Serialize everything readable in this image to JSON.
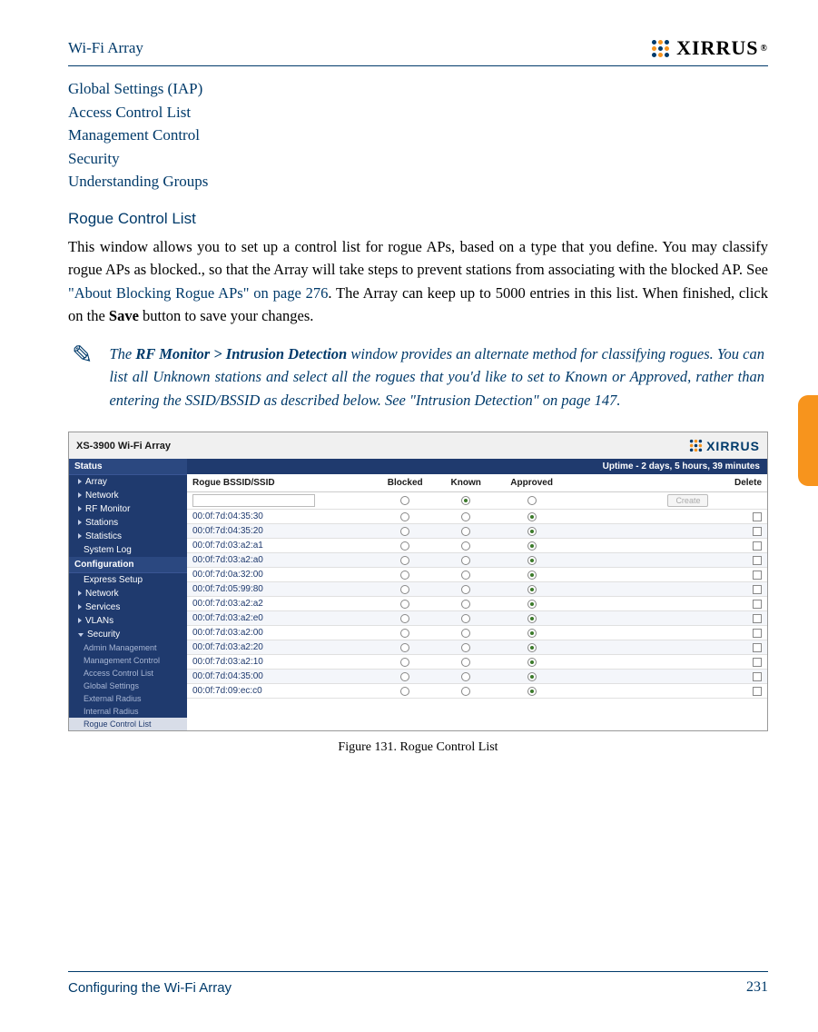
{
  "header": {
    "title": "Wi-Fi Array",
    "logo_text": "XIRRUS"
  },
  "nav_links": [
    "Global Settings (IAP)",
    "Access Control List",
    "Management Control",
    "Security",
    "Understanding Groups"
  ],
  "section": {
    "heading": "Rogue Control List",
    "para_1a": "This window allows you to set up a control list for rogue APs, based on a type that you define. You may classify rogue APs as blocked., so that the Array will take steps to prevent stations from associating with the blocked AP. See ",
    "para_1_link": "\"About Blocking Rogue APs\" on page 276",
    "para_1b": ". The Array can keep up to 5000 entries in this list. When finished, click on the ",
    "para_1_bold": "Save",
    "para_1c": " button to save your changes."
  },
  "note": {
    "prefix": "The ",
    "bold": "RF Monitor > Intrusion Detection",
    "rest": " window provides an alternate method for classifying rogues. You can list all Unknown stations and select all the rogues that you'd like to set to Known or Approved, rather than entering the SSID/BSSID as described below. See \"Intrusion Detection\" on page 147."
  },
  "screenshot": {
    "product": "XS-3900 Wi-Fi Array",
    "logo": "XIRRUS",
    "uptime": "Uptime - 2 days, 5 hours, 39 minutes",
    "sidebar": {
      "status_header": "Status",
      "status_items": [
        "Array",
        "Network",
        "RF Monitor",
        "Stations",
        "Statistics",
        "System Log"
      ],
      "config_header": "Configuration",
      "config_items": [
        "Express Setup",
        "Network",
        "Services",
        "VLANs",
        "Security"
      ],
      "security_sub": [
        "Admin Management",
        "Management Control",
        "Access Control List",
        "Global Settings",
        "External Radius",
        "Internal Radius",
        "Rogue Control List"
      ]
    },
    "table": {
      "headers": {
        "bssid": "Rogue BSSID/SSID",
        "blocked": "Blocked",
        "known": "Known",
        "approved": "Approved",
        "delete": "Delete"
      },
      "create_label": "Create",
      "rows": [
        {
          "bssid": "00:0f:7d:04:35:30",
          "state": "approved"
        },
        {
          "bssid": "00:0f:7d:04:35:20",
          "state": "approved"
        },
        {
          "bssid": "00:0f:7d:03:a2:a1",
          "state": "approved"
        },
        {
          "bssid": "00:0f:7d:03:a2:a0",
          "state": "approved"
        },
        {
          "bssid": "00:0f:7d:0a:32:00",
          "state": "approved"
        },
        {
          "bssid": "00:0f:7d:05:99:80",
          "state": "approved"
        },
        {
          "bssid": "00:0f:7d:03:a2:a2",
          "state": "approved"
        },
        {
          "bssid": "00:0f:7d:03:a2:e0",
          "state": "approved"
        },
        {
          "bssid": "00:0f:7d:03:a2:00",
          "state": "approved"
        },
        {
          "bssid": "00:0f:7d:03:a2:20",
          "state": "approved"
        },
        {
          "bssid": "00:0f:7d:03:a2:10",
          "state": "approved"
        },
        {
          "bssid": "00:0f:7d:04:35:00",
          "state": "approved"
        },
        {
          "bssid": "00:0f:7d:09:ec:c0",
          "state": "approved"
        }
      ],
      "new_row_state": "known"
    }
  },
  "figure_caption": "Figure 131. Rogue Control List",
  "footer": {
    "title": "Configuring the Wi-Fi Array",
    "page": "231"
  }
}
